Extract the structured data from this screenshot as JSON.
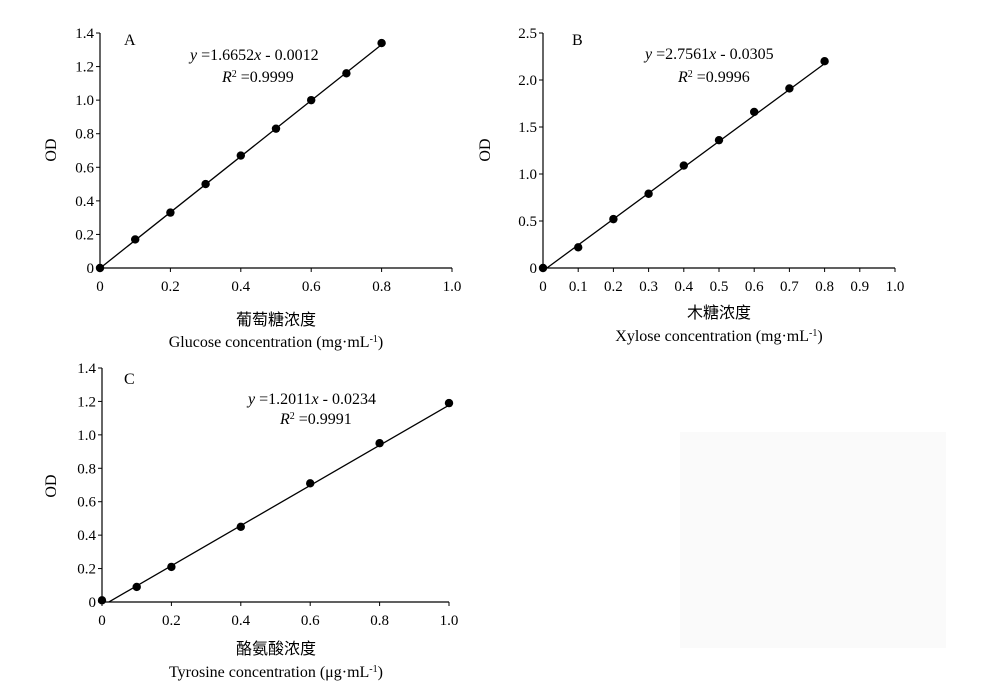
{
  "chart_data": [
    {
      "type": "scatter",
      "panel_label": "A",
      "xlabel_cn": "葡萄糖浓度",
      "xlabel": "Glucose concentration (mg·mL",
      "xlabel_sup": "-1",
      "xlabel_end": ")",
      "ylabel": "OD",
      "xlim": [
        0,
        1.0
      ],
      "ylim": [
        0,
        1.4
      ],
      "x_ticks": [
        0,
        0.2,
        0.4,
        0.6,
        0.8,
        1.0
      ],
      "x_tick_labels": [
        "0",
        "0.2",
        "0.4",
        "0.6",
        "0.8",
        "1.0"
      ],
      "y_ticks": [
        0,
        0.2,
        0.4,
        0.6,
        0.8,
        1.0,
        1.2,
        1.4
      ],
      "y_tick_labels": [
        "0",
        "0.2",
        "0.4",
        "0.6",
        "0.8",
        "1.0",
        "1.2",
        "1.4"
      ],
      "x": [
        0,
        0.1,
        0.2,
        0.3,
        0.4,
        0.5,
        0.6,
        0.7,
        0.8
      ],
      "y": [
        0,
        0.17,
        0.33,
        0.5,
        0.67,
        0.83,
        1.0,
        1.16,
        1.34
      ],
      "fit": {
        "slope": 1.6652,
        "intercept": -0.0012,
        "x_range": [
          0,
          0.8
        ]
      },
      "equation": {
        "var": "y",
        "rest": " =1.6652",
        "xvar": "x",
        "tail": " - 0.0012"
      },
      "r2": {
        "var": "R",
        "sup": "2",
        "rest": " =0.9999"
      },
      "grid": false
    },
    {
      "type": "scatter",
      "panel_label": "B",
      "xlabel_cn": "木糖浓度",
      "xlabel": "Xylose concentration (mg·mL",
      "xlabel_sup": "-1",
      "xlabel_end": ")",
      "ylabel": "OD",
      "xlim": [
        0,
        1.0
      ],
      "ylim": [
        0,
        2.5
      ],
      "x_ticks": [
        0,
        0.1,
        0.2,
        0.3,
        0.4,
        0.5,
        0.6,
        0.7,
        0.8,
        0.9,
        1.0
      ],
      "x_tick_labels": [
        "0",
        "0.1",
        "0.2",
        "0.3",
        "0.4",
        "0.5",
        "0.6",
        "0.7",
        "0.8",
        "0.9",
        "1.0"
      ],
      "y_ticks": [
        0,
        0.5,
        1.0,
        1.5,
        2.0,
        2.5
      ],
      "y_tick_labels": [
        "0",
        "0.5",
        "1.0",
        "1.5",
        "2.0",
        "2.5"
      ],
      "x": [
        0,
        0.1,
        0.2,
        0.3,
        0.4,
        0.5,
        0.6,
        0.7,
        0.8
      ],
      "y": [
        0,
        0.22,
        0.52,
        0.79,
        1.09,
        1.36,
        1.66,
        1.91,
        2.2
      ],
      "fit": {
        "slope": 2.7561,
        "intercept": -0.0305,
        "x_range": [
          0,
          0.8
        ]
      },
      "equation": {
        "var": "y",
        "rest": " =2.7561",
        "xvar": "x",
        "tail": " - 0.0305"
      },
      "r2": {
        "var": "R",
        "sup": "2",
        "rest": " =0.9996"
      },
      "grid": false
    },
    {
      "type": "scatter",
      "panel_label": "C",
      "xlabel_cn": "酪氨酸浓度",
      "xlabel": "Tyrosine concentration (μg·mL",
      "xlabel_sup": "-1",
      "xlabel_end": ")",
      "ylabel": "OD",
      "xlim": [
        0,
        1.0
      ],
      "ylim": [
        0,
        1.4
      ],
      "x_ticks": [
        0,
        0.2,
        0.4,
        0.6,
        0.8,
        1.0
      ],
      "x_tick_labels": [
        "0",
        "0.2",
        "0.4",
        "0.6",
        "0.8",
        "1.0"
      ],
      "y_ticks": [
        0,
        0.2,
        0.4,
        0.6,
        0.8,
        1.0,
        1.2,
        1.4
      ],
      "y_tick_labels": [
        "0",
        "0.2",
        "0.4",
        "0.6",
        "0.8",
        "1.0",
        "1.2",
        "1.4"
      ],
      "x": [
        0,
        0.1,
        0.2,
        0.4,
        0.6,
        0.8,
        1.0
      ],
      "y": [
        0.01,
        0.09,
        0.21,
        0.45,
        0.71,
        0.95,
        1.19
      ],
      "fit": {
        "slope": 1.2011,
        "intercept": -0.0234,
        "x_range": [
          0.02,
          1.0
        ]
      },
      "equation": {
        "var": "y",
        "rest": " =1.2011",
        "xvar": "x",
        "tail": " - 0.0234"
      },
      "r2": {
        "var": "R",
        "sup": "2",
        "rest": " =0.9991"
      },
      "grid": false
    }
  ]
}
